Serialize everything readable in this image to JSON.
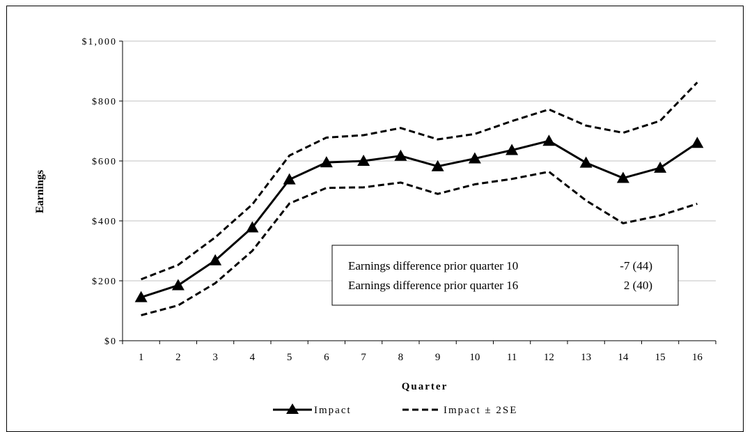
{
  "chart_data": {
    "type": "line",
    "xlabel": "Quarter",
    "ylabel": "Earnings",
    "categories": [
      "1",
      "2",
      "3",
      "4",
      "5",
      "6",
      "7",
      "8",
      "9",
      "10",
      "11",
      "12",
      "13",
      "14",
      "15",
      "16"
    ],
    "y_ticks": [
      "$0",
      "$200",
      "$400",
      "$600",
      "$800",
      "$1,000"
    ],
    "y_tick_values": [
      0,
      200,
      400,
      600,
      800,
      1000
    ],
    "ylim": [
      0,
      1000
    ],
    "grid": "horizontal",
    "legend_position": "bottom",
    "series": [
      {
        "name": "Impact",
        "style": "solid-triangle",
        "color": "#000000",
        "values": [
          145,
          185,
          268,
          378,
          538,
          595,
          600,
          617,
          582,
          608,
          636,
          667,
          594,
          543,
          577,
          660
        ]
      },
      {
        "name": "Impact ± 2SE",
        "style": "dashed",
        "color": "#000000",
        "values": [
          205,
          253,
          345,
          455,
          618,
          678,
          686,
          710,
          672,
          690,
          733,
          772,
          718,
          694,
          734,
          862
        ]
      },
      {
        "style": "dashed",
        "color": "#000000",
        "values": [
          85,
          118,
          192,
          300,
          458,
          510,
          512,
          528,
          490,
          522,
          540,
          564,
          468,
          392,
          418,
          457
        ]
      }
    ],
    "annotation": {
      "rows": [
        {
          "label": "Earnings difference prior quarter 10",
          "value": "-7 (44)"
        },
        {
          "label": "Earnings difference prior quarter 16",
          "value": "2 (40)"
        }
      ]
    }
  }
}
